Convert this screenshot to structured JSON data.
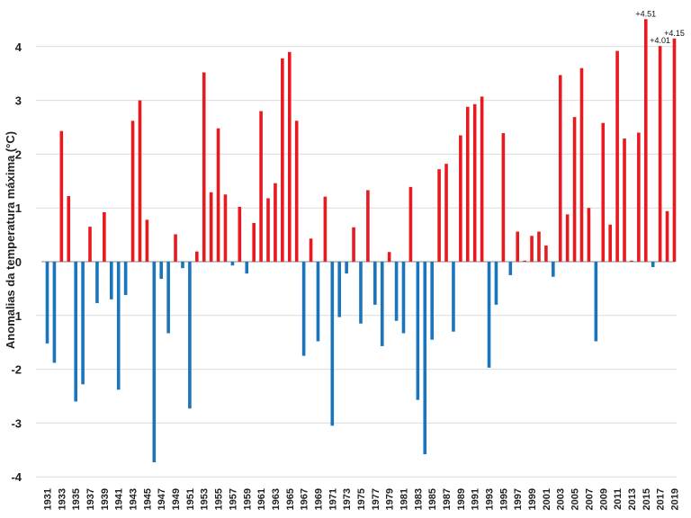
{
  "chart_data": {
    "type": "bar",
    "title": "",
    "xlabel": "",
    "ylabel": "Anomalias da temperatura máxima (°C)",
    "ylim": [
      -4,
      4.6
    ],
    "yticks": [
      -4,
      -3,
      -2,
      -1,
      0,
      1,
      2,
      3,
      4
    ],
    "grid": true,
    "colors": {
      "positive": "#e8191f",
      "negative": "#1a75bc"
    },
    "x": [
      1931,
      1932,
      1933,
      1934,
      1935,
      1936,
      1937,
      1938,
      1939,
      1940,
      1941,
      1942,
      1943,
      1944,
      1945,
      1946,
      1947,
      1948,
      1949,
      1950,
      1951,
      1952,
      1953,
      1954,
      1955,
      1956,
      1957,
      1958,
      1959,
      1960,
      1961,
      1962,
      1963,
      1964,
      1965,
      1966,
      1967,
      1968,
      1969,
      1970,
      1971,
      1972,
      1973,
      1974,
      1975,
      1976,
      1977,
      1978,
      1979,
      1980,
      1981,
      1982,
      1983,
      1984,
      1985,
      1986,
      1987,
      1988,
      1989,
      1990,
      1991,
      1992,
      1993,
      1994,
      1995,
      1996,
      1997,
      1998,
      1999,
      2000,
      2001,
      2002,
      2003,
      2004,
      2005,
      2006,
      2007,
      2008,
      2009,
      2010,
      2011,
      2012,
      2013,
      2014,
      2015,
      2016,
      2017,
      2018,
      2019
    ],
    "xtick_labels": [
      "1931",
      "1933",
      "1935",
      "1937",
      "1939",
      "1941",
      "1943",
      "1945",
      "1947",
      "1949",
      "1951",
      "1953",
      "1955",
      "1957",
      "1959",
      "1961",
      "1963",
      "1965",
      "1967",
      "1969",
      "1971",
      "1973",
      "1975",
      "1977",
      "1979",
      "1981",
      "1983",
      "1985",
      "1987",
      "1989",
      "1991",
      "1993",
      "1995",
      "1997",
      "1999",
      "2001",
      "2003",
      "2005",
      "2007",
      "2009",
      "2011",
      "2013",
      "2015",
      "2017",
      "2019"
    ],
    "values": [
      -1.52,
      -1.88,
      2.43,
      1.22,
      -2.6,
      -2.28,
      0.65,
      -0.77,
      0.92,
      -0.7,
      -2.38,
      -0.62,
      2.62,
      3.0,
      0.78,
      -3.73,
      -0.32,
      -1.33,
      0.51,
      -0.12,
      -2.73,
      0.19,
      3.52,
      1.29,
      2.48,
      1.25,
      -0.07,
      1.02,
      -0.22,
      0.72,
      2.8,
      1.18,
      1.46,
      3.78,
      3.9,
      2.62,
      -1.75,
      0.43,
      -1.48,
      1.21,
      -3.05,
      -1.03,
      -0.22,
      0.64,
      -1.15,
      1.33,
      -0.8,
      -1.57,
      0.18,
      -1.1,
      -1.33,
      1.39,
      -2.57,
      -3.58,
      -1.45,
      1.72,
      1.82,
      -1.3,
      2.35,
      2.88,
      2.93,
      3.07,
      -1.97,
      -0.8,
      2.39,
      -0.25,
      0.56,
      0.02,
      0.48,
      0.56,
      0.3,
      -0.28,
      3.47,
      0.88,
      2.69,
      3.6,
      1.0,
      -1.48,
      2.58,
      0.69,
      3.92,
      2.29,
      0.02,
      2.4,
      4.51,
      -0.1,
      4.01,
      0.94,
      4.15
    ],
    "annotations": [
      {
        "year": 2015,
        "text": "+4.51"
      },
      {
        "year": 2017,
        "text": "+4.01"
      },
      {
        "year": 2019,
        "text": "+4.15"
      }
    ]
  }
}
